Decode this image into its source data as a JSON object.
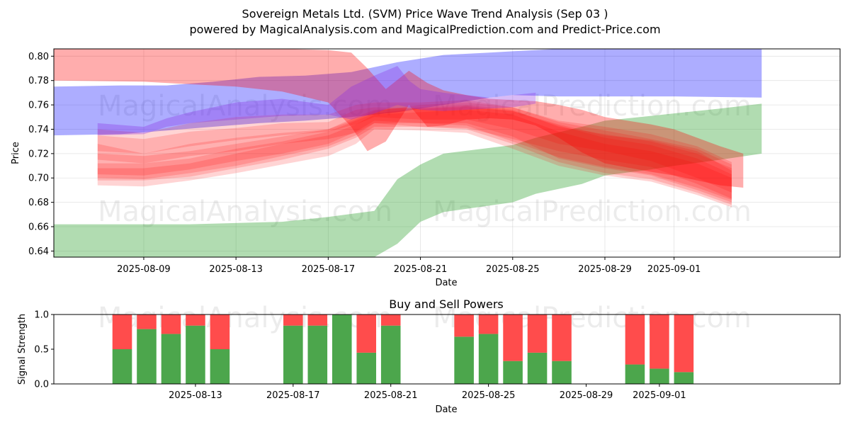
{
  "chart_data": [
    {
      "type": "area",
      "title": "Sovereign Metals Ltd. (SVM) Price Wave Trend Analysis (Sep 03 )",
      "subtitle": "powered by MagicalAnalysis.com and MagicalPrediction.com and Predict-Price.com",
      "xlabel": "Date",
      "ylabel": "Price",
      "ylim": [
        0.635,
        0.806
      ],
      "xlim_days": [
        -1.9,
        32.2
      ],
      "x_origin_date": "2025-08-07",
      "grid": true,
      "y_ticks": [
        {
          "value": 0.64,
          "label": "0.64"
        },
        {
          "value": 0.66,
          "label": "0.66"
        },
        {
          "value": 0.68,
          "label": "0.68"
        },
        {
          "value": 0.7,
          "label": "0.70"
        },
        {
          "value": 0.72,
          "label": "0.72"
        },
        {
          "value": 0.74,
          "label": "0.74"
        },
        {
          "value": 0.76,
          "label": "0.76"
        },
        {
          "value": 0.78,
          "label": "0.78"
        },
        {
          "value": 0.8,
          "label": "0.80"
        }
      ],
      "x_ticks": [
        {
          "day": 2,
          "label": "2025-08-09"
        },
        {
          "day": 6,
          "label": "2025-08-13"
        },
        {
          "day": 10,
          "label": "2025-08-17"
        },
        {
          "day": 14,
          "label": "2025-08-21"
        },
        {
          "day": 18,
          "label": "2025-08-25"
        },
        {
          "day": 22,
          "label": "2025-08-29"
        },
        {
          "day": 25,
          "label": "2025-09-01"
        }
      ],
      "watermarks": [
        "MagicalAnalysis.com",
        "MagicalPrediction.com"
      ],
      "bands": [
        {
          "name": "green-wave",
          "color": "#2ca02c",
          "opacity": 0.37,
          "days": [
            -1.9,
            0,
            4,
            8,
            10,
            12,
            13,
            14,
            15,
            18,
            19,
            21,
            22,
            24,
            25,
            27,
            28.8
          ],
          "upper": [
            0.662,
            0.662,
            0.662,
            0.664,
            0.668,
            0.673,
            0.699,
            0.711,
            0.72,
            0.727,
            0.733,
            0.742,
            0.747,
            0.751,
            0.753,
            0.757,
            0.761
          ],
          "lower": [
            0.635,
            0.635,
            0.635,
            0.635,
            0.635,
            0.635,
            0.646,
            0.664,
            0.672,
            0.68,
            0.687,
            0.695,
            0.702,
            0.707,
            0.71,
            0.715,
            0.72
          ]
        },
        {
          "name": "blue-wave",
          "color": "#0000ff",
          "opacity": 0.32,
          "days": [
            -1.9,
            1,
            3,
            5,
            7,
            9,
            11,
            13,
            15,
            17,
            18,
            20,
            22,
            25,
            28.8
          ],
          "upper": [
            0.775,
            0.776,
            0.776,
            0.779,
            0.783,
            0.784,
            0.787,
            0.795,
            0.801,
            0.803,
            0.804,
            0.806,
            0.806,
            0.806,
            0.806
          ],
          "lower": [
            0.735,
            0.736,
            0.739,
            0.742,
            0.745,
            0.747,
            0.75,
            0.754,
            0.76,
            0.766,
            0.768,
            0.767,
            0.767,
            0.767,
            0.766
          ]
        },
        {
          "name": "red-wave-top",
          "color": "#ff0000",
          "opacity": 0.32,
          "days": [
            -1.9,
            2,
            4,
            6,
            8,
            10,
            11,
            11.7,
            12.5,
            13.5,
            14.3,
            15,
            16,
            17,
            18,
            19,
            20,
            21,
            22,
            24,
            25,
            26,
            27,
            28
          ],
          "upper": [
            0.806,
            0.806,
            0.806,
            0.806,
            0.806,
            0.805,
            0.803,
            0.79,
            0.773,
            0.788,
            0.778,
            0.772,
            0.768,
            0.765,
            0.764,
            0.763,
            0.76,
            0.756,
            0.75,
            0.744,
            0.74,
            0.733,
            0.726,
            0.72
          ],
          "lower": [
            0.78,
            0.779,
            0.777,
            0.775,
            0.771,
            0.762,
            0.742,
            0.722,
            0.73,
            0.76,
            0.742,
            0.743,
            0.748,
            0.749,
            0.748,
            0.743,
            0.733,
            0.721,
            0.712,
            0.705,
            0.702,
            0.698,
            0.694,
            0.692
          ]
        }
      ],
      "purple_overlay": {
        "name": "purple-overlap",
        "color": "#8a2be2",
        "opacity": 0.32,
        "days": [
          0,
          2,
          3,
          4,
          6,
          8,
          10,
          11,
          12,
          13,
          13.5,
          14,
          15,
          17,
          18,
          19
        ],
        "upper": [
          0.745,
          0.742,
          0.749,
          0.754,
          0.762,
          0.765,
          0.76,
          0.775,
          0.784,
          0.792,
          0.78,
          0.773,
          0.77,
          0.766,
          0.768,
          0.77
        ],
        "lower": [
          0.735,
          0.736,
          0.742,
          0.745,
          0.748,
          0.751,
          0.752,
          0.748,
          0.753,
          0.76,
          0.758,
          0.756,
          0.755,
          0.757,
          0.758,
          0.761
        ]
      },
      "light_red_fans": [
        {
          "days": [
            0,
            2,
            4,
            6,
            8,
            10,
            11.2,
            12,
            14,
            16,
            18,
            20,
            22,
            24,
            26,
            27.5
          ],
          "upper": [
            0.735,
            0.732,
            0.738,
            0.741,
            0.745,
            0.746,
            0.756,
            0.758,
            0.757,
            0.759,
            0.755,
            0.744,
            0.735,
            0.731,
            0.722,
            0.706
          ],
          "lower": [
            0.715,
            0.712,
            0.718,
            0.722,
            0.728,
            0.732,
            0.737,
            0.745,
            0.742,
            0.741,
            0.732,
            0.722,
            0.715,
            0.709,
            0.695,
            0.683
          ],
          "opacity": 0.17
        },
        {
          "days": [
            0,
            2,
            4,
            6,
            8,
            10,
            11.2,
            12,
            14,
            16,
            18,
            20,
            22,
            24,
            26,
            27.5
          ],
          "upper": [
            0.708,
            0.708,
            0.712,
            0.72,
            0.728,
            0.735,
            0.744,
            0.752,
            0.754,
            0.756,
            0.752,
            0.738,
            0.728,
            0.722,
            0.712,
            0.7
          ],
          "lower": [
            0.694,
            0.693,
            0.698,
            0.704,
            0.711,
            0.718,
            0.728,
            0.74,
            0.739,
            0.737,
            0.724,
            0.71,
            0.702,
            0.697,
            0.686,
            0.676
          ],
          "opacity": 0.17
        },
        {
          "days": [
            0,
            2,
            4,
            6,
            8,
            10,
            11.2,
            12,
            14,
            16,
            18,
            20,
            22,
            24,
            26,
            27.5
          ],
          "upper": [
            0.728,
            0.72,
            0.728,
            0.733,
            0.737,
            0.74,
            0.748,
            0.755,
            0.76,
            0.762,
            0.758,
            0.746,
            0.739,
            0.732,
            0.724,
            0.711
          ],
          "lower": [
            0.7,
            0.699,
            0.704,
            0.71,
            0.718,
            0.726,
            0.735,
            0.745,
            0.745,
            0.745,
            0.734,
            0.716,
            0.708,
            0.702,
            0.69,
            0.68
          ],
          "opacity": 0.17
        },
        {
          "days": [
            0,
            2,
            4,
            6,
            8,
            10,
            11.2,
            12,
            14,
            16,
            18,
            20,
            22,
            24,
            26,
            27.5
          ],
          "upper": [
            0.74,
            0.737,
            0.745,
            0.75,
            0.752,
            0.752,
            0.76,
            0.762,
            0.762,
            0.764,
            0.758,
            0.747,
            0.742,
            0.736,
            0.726,
            0.713
          ],
          "lower": [
            0.722,
            0.72,
            0.726,
            0.731,
            0.735,
            0.738,
            0.744,
            0.75,
            0.748,
            0.748,
            0.74,
            0.728,
            0.722,
            0.714,
            0.7,
            0.688
          ],
          "opacity": 0.17
        },
        {
          "days": [
            0,
            2,
            4,
            6,
            8,
            10,
            11.2,
            12,
            14,
            16,
            18,
            20,
            22,
            24,
            26,
            27.5
          ],
          "upper": [
            0.712,
            0.712,
            0.716,
            0.724,
            0.73,
            0.738,
            0.747,
            0.753,
            0.757,
            0.758,
            0.755,
            0.743,
            0.733,
            0.727,
            0.716,
            0.703
          ],
          "lower": [
            0.698,
            0.698,
            0.701,
            0.708,
            0.715,
            0.724,
            0.733,
            0.742,
            0.742,
            0.74,
            0.728,
            0.713,
            0.704,
            0.699,
            0.688,
            0.678
          ],
          "opacity": 0.17
        },
        {
          "days": [
            0,
            2,
            4,
            6,
            8,
            10,
            11.2,
            12,
            14,
            16,
            18,
            20,
            22,
            24,
            26,
            27.5
          ],
          "upper": [
            0.72,
            0.718,
            0.722,
            0.728,
            0.734,
            0.74,
            0.75,
            0.756,
            0.758,
            0.76,
            0.756,
            0.742,
            0.736,
            0.73,
            0.72,
            0.708
          ],
          "lower": [
            0.703,
            0.702,
            0.707,
            0.714,
            0.72,
            0.728,
            0.738,
            0.747,
            0.745,
            0.743,
            0.73,
            0.717,
            0.709,
            0.703,
            0.692,
            0.682
          ],
          "opacity": 0.17
        }
      ]
    },
    {
      "type": "bar",
      "title": "Buy and Sell Powers",
      "xlabel": "Date",
      "ylabel": "Signal Strength",
      "ylim": [
        0,
        1
      ],
      "xlim_days": [
        -2.8,
        29.4
      ],
      "x_origin_date": "2025-08-10",
      "y_ticks": [
        {
          "value": 0.0,
          "label": "0.0"
        },
        {
          "value": 0.5,
          "label": "0.5"
        },
        {
          "value": 1.0,
          "label": "1.0"
        }
      ],
      "x_ticks": [
        {
          "day": 3,
          "label": "2025-08-13"
        },
        {
          "day": 7,
          "label": "2025-08-17"
        },
        {
          "day": 11,
          "label": "2025-08-21"
        },
        {
          "day": 15,
          "label": "2025-08-25"
        },
        {
          "day": 19,
          "label": "2025-08-29"
        },
        {
          "day": 22,
          "label": "2025-09-01"
        }
      ],
      "bar_width_days": 0.8,
      "series": [
        {
          "name": "Buy",
          "color": "#4ca64c"
        },
        {
          "name": "Sell",
          "color": "#ff4c4c"
        }
      ],
      "bars": [
        {
          "day": 0,
          "buy": 0.5
        },
        {
          "day": 1,
          "buy": 0.79
        },
        {
          "day": 2,
          "buy": 0.72
        },
        {
          "day": 3,
          "buy": 0.84
        },
        {
          "day": 4,
          "buy": 0.5
        },
        {
          "day": 7,
          "buy": 0.84
        },
        {
          "day": 8,
          "buy": 0.84
        },
        {
          "day": 9,
          "buy": 1.0
        },
        {
          "day": 10,
          "buy": 0.45
        },
        {
          "day": 11,
          "buy": 0.84
        },
        {
          "day": 14,
          "buy": 0.68
        },
        {
          "day": 15,
          "buy": 0.72
        },
        {
          "day": 16,
          "buy": 0.33
        },
        {
          "day": 17,
          "buy": 0.45
        },
        {
          "day": 18,
          "buy": 0.33
        },
        {
          "day": 21,
          "buy": 0.28
        },
        {
          "day": 22,
          "buy": 0.22
        },
        {
          "day": 23,
          "buy": 0.17
        }
      ],
      "watermarks": [
        "MagicalAnalysis.com",
        "MagicalPrediction.com"
      ]
    }
  ]
}
